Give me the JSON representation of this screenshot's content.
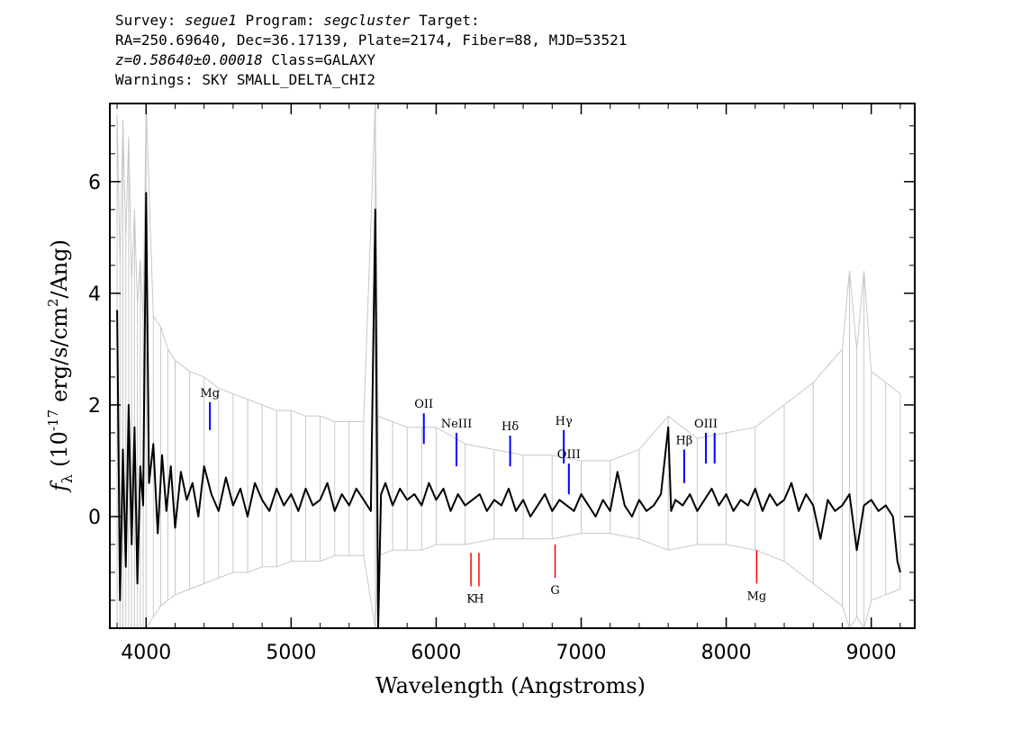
{
  "header": {
    "survey_label": "Survey:",
    "survey": "segue1",
    "program_label": "Program:",
    "program": "segcluster",
    "target_label": "Target:",
    "line2": "RA=250.69640, Dec=36.17139, Plate=2174, Fiber=88, MJD=53521",
    "z_value": "z=0.58640±0.00018",
    "class_text": "Class=GALAXY",
    "warnings": "Warnings: SKY SMALL_DELTA_CHI2"
  },
  "chart_data": {
    "type": "line",
    "xlabel": "Wavelength (Angstroms)",
    "ylabel_symbol": "f",
    "ylabel_sub": "λ",
    "ylabel_text_a": "(10",
    "ylabel_exp": "-17",
    "ylabel_text_b": "erg/s/cm",
    "ylabel_exp2": "2",
    "ylabel_text_c": "/Ang)",
    "xlim": [
      3750,
      9300
    ],
    "ylim": [
      -2.0,
      7.4
    ],
    "xticks": [
      4000,
      5000,
      6000,
      7000,
      8000,
      9000
    ],
    "yticks": [
      0,
      2,
      4,
      6
    ],
    "series": [
      {
        "role": "flux",
        "color": "#000000",
        "x": [
          3800,
          3820,
          3840,
          3860,
          3880,
          3900,
          3920,
          3940,
          3960,
          3980,
          4000,
          4020,
          4050,
          4080,
          4110,
          4140,
          4170,
          4200,
          4240,
          4280,
          4320,
          4360,
          4400,
          4450,
          4500,
          4550,
          4600,
          4650,
          4700,
          4750,
          4800,
          4850,
          4900,
          4950,
          5000,
          5050,
          5100,
          5150,
          5200,
          5250,
          5300,
          5350,
          5400,
          5450,
          5500,
          5550,
          5580,
          5600,
          5620,
          5650,
          5700,
          5750,
          5800,
          5850,
          5900,
          5950,
          6000,
          6050,
          6100,
          6150,
          6200,
          6250,
          6300,
          6350,
          6400,
          6450,
          6500,
          6550,
          6600,
          6650,
          6700,
          6750,
          6800,
          6850,
          6900,
          6950,
          7000,
          7050,
          7100,
          7150,
          7200,
          7250,
          7300,
          7350,
          7400,
          7450,
          7500,
          7550,
          7600,
          7620,
          7650,
          7700,
          7750,
          7800,
          7850,
          7900,
          7950,
          8000,
          8050,
          8100,
          8150,
          8200,
          8250,
          8300,
          8350,
          8400,
          8450,
          8500,
          8550,
          8600,
          8650,
          8700,
          8750,
          8800,
          8850,
          8900,
          8950,
          9000,
          9050,
          9100,
          9150,
          9180,
          9200
        ],
        "y": [
          3.7,
          -1.5,
          1.2,
          -0.9,
          2.0,
          -0.5,
          1.6,
          -1.2,
          0.9,
          0.2,
          5.8,
          0.6,
          1.3,
          -0.3,
          1.1,
          0.1,
          0.9,
          -0.2,
          0.8,
          0.3,
          0.6,
          0.0,
          0.9,
          0.4,
          0.1,
          0.7,
          0.2,
          0.5,
          0.0,
          0.6,
          0.3,
          0.1,
          0.5,
          0.2,
          0.4,
          0.1,
          0.5,
          0.2,
          0.3,
          0.6,
          0.1,
          0.4,
          0.2,
          0.5,
          0.3,
          0.1,
          5.5,
          -2.0,
          0.4,
          0.6,
          0.2,
          0.5,
          0.3,
          0.4,
          0.2,
          0.6,
          0.3,
          0.5,
          0.1,
          0.4,
          0.2,
          0.3,
          0.4,
          0.1,
          0.3,
          0.2,
          0.5,
          0.1,
          0.3,
          0.0,
          0.2,
          0.4,
          0.1,
          0.3,
          0.2,
          0.1,
          0.4,
          0.2,
          0.0,
          0.3,
          0.1,
          0.8,
          0.2,
          0.0,
          0.3,
          0.1,
          0.2,
          0.4,
          1.6,
          0.1,
          0.3,
          0.2,
          0.4,
          0.1,
          0.3,
          0.5,
          0.2,
          0.4,
          0.1,
          0.3,
          0.2,
          0.5,
          0.1,
          0.4,
          0.2,
          0.3,
          0.6,
          0.1,
          0.4,
          0.2,
          -0.4,
          0.3,
          0.1,
          0.2,
          0.4,
          -0.6,
          0.2,
          0.3,
          0.1,
          0.2,
          0.0,
          -0.8,
          -1.0
        ]
      },
      {
        "role": "noise",
        "color": "#c8c8c8",
        "x": [
          3800,
          3820,
          3840,
          3860,
          3880,
          3900,
          3920,
          3940,
          3960,
          3980,
          4000,
          4050,
          4100,
          4150,
          4200,
          4300,
          4400,
          4500,
          4600,
          4700,
          4800,
          4900,
          5000,
          5100,
          5200,
          5300,
          5400,
          5500,
          5580,
          5600,
          5700,
          5800,
          5900,
          6000,
          6200,
          6400,
          6600,
          6800,
          7000,
          7200,
          7400,
          7600,
          7800,
          8000,
          8200,
          8400,
          8600,
          8800,
          8850,
          8900,
          8950,
          9000,
          9100,
          9200
        ],
        "high": [
          7.2,
          4.5,
          7.1,
          5.0,
          6.8,
          4.2,
          5.5,
          3.8,
          4.6,
          3.5,
          7.4,
          3.6,
          3.4,
          3.0,
          2.8,
          2.6,
          2.5,
          2.3,
          2.2,
          2.1,
          2.0,
          1.9,
          1.9,
          1.8,
          1.8,
          1.7,
          1.7,
          1.7,
          7.4,
          1.8,
          1.7,
          1.6,
          1.6,
          1.6,
          1.3,
          1.2,
          1.1,
          1.1,
          1.0,
          1.0,
          1.2,
          1.8,
          1.4,
          1.5,
          1.6,
          2.0,
          2.4,
          3.0,
          4.4,
          3.0,
          4.4,
          2.6,
          2.4,
          2.2
        ],
        "low": [
          -2.0,
          -2.0,
          -2.0,
          -2.0,
          -2.0,
          -2.0,
          -2.0,
          -2.0,
          -2.0,
          -2.0,
          -2.0,
          -1.8,
          -1.6,
          -1.5,
          -1.4,
          -1.3,
          -1.2,
          -1.1,
          -1.0,
          -1.0,
          -0.9,
          -0.9,
          -0.8,
          -0.8,
          -0.8,
          -0.7,
          -0.7,
          -0.7,
          -2.0,
          -0.7,
          -0.6,
          -0.6,
          -0.6,
          -0.5,
          -0.5,
          -0.4,
          -0.4,
          -0.4,
          -0.3,
          -0.3,
          -0.4,
          -0.6,
          -0.5,
          -0.5,
          -0.6,
          -0.8,
          -1.2,
          -1.6,
          -2.0,
          -1.8,
          -2.0,
          -1.5,
          -1.4,
          -1.3
        ]
      }
    ],
    "emission_lines": [
      {
        "label": "Mg",
        "x": 4440,
        "y_bottom": 1.55,
        "y_top": 2.05,
        "color": "#0000ff"
      },
      {
        "label": "OII",
        "x": 5915,
        "y_bottom": 1.3,
        "y_top": 1.85,
        "color": "#0000ff"
      },
      {
        "label": "NeIII",
        "x": 6140,
        "y_bottom": 0.9,
        "y_top": 1.5,
        "color": "#0000ff"
      },
      {
        "label": "Hδ",
        "x": 6510,
        "y_bottom": 0.9,
        "y_top": 1.45,
        "color": "#0000ff"
      },
      {
        "label": "Hγ",
        "x": 6880,
        "y_bottom": 0.95,
        "y_top": 1.55,
        "color": "#0000ff"
      },
      {
        "label": "OIII",
        "x": 6915,
        "y_bottom": 0.4,
        "y_top": 0.95,
        "color": "#0000ff"
      },
      {
        "label": "Hβ",
        "x": 7710,
        "y_bottom": 0.6,
        "y_top": 1.2,
        "color": "#0000ff"
      },
      {
        "label": "OIII",
        "x": 7860,
        "y_bottom": 0.95,
        "y_top": 1.5,
        "color": "#0000ff"
      },
      {
        "label": "",
        "x": 7920,
        "y_bottom": 0.95,
        "y_top": 1.5,
        "color": "#0000ff"
      }
    ],
    "absorption_lines": [
      {
        "label": "K",
        "x": 6240,
        "y_top": -0.65,
        "y_bottom": -1.25,
        "color": "#ff0000"
      },
      {
        "label": "H",
        "x": 6295,
        "y_top": -0.65,
        "y_bottom": -1.25,
        "color": "#ff0000"
      },
      {
        "label": "G",
        "x": 6820,
        "y_top": -0.5,
        "y_bottom": -1.1,
        "color": "#ff0000"
      },
      {
        "label": "Mg",
        "x": 8210,
        "y_top": -0.6,
        "y_bottom": -1.2,
        "color": "#ff0000"
      }
    ]
  }
}
